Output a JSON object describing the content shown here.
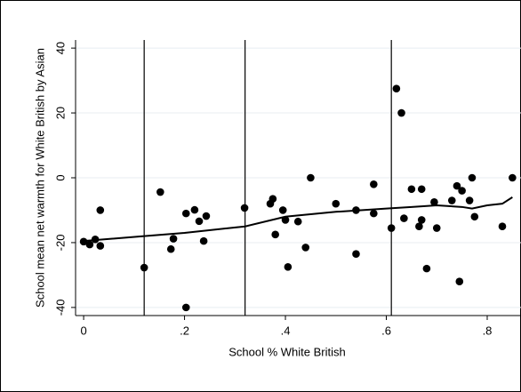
{
  "chart_data": {
    "type": "scatter",
    "x_label": "School % White British",
    "y_label": "School mean net warmth for White British by Asian",
    "xlim": [
      -0.016,
      0.867
    ],
    "ylim": [
      -42.5,
      42.5
    ],
    "xticks": [
      0,
      {
        "value": 0.2,
        "label": ".2"
      },
      {
        "value": 0.4,
        "label": ".4"
      },
      {
        "value": 0.6,
        "label": ".6"
      },
      {
        "value": 0.8,
        "label": ".8"
      }
    ],
    "yticks": [
      -40,
      -20,
      0,
      20,
      40
    ],
    "grid": true,
    "color": "#000000",
    "vlines": [
      0.12,
      0.32,
      0.61
    ],
    "points": {
      "x": [
        0,
        0.012,
        0.023,
        0.033,
        0.033,
        0.12,
        0.152,
        0.173,
        0.178,
        0.203,
        0.203,
        0.22,
        0.229,
        0.238,
        0.243,
        0.319,
        0.37,
        0.375,
        0.38,
        0.395,
        0.4,
        0.405,
        0.425,
        0.44,
        0.45,
        0.5,
        0.54,
        0.54,
        0.575,
        0.575,
        0.61,
        0.62,
        0.63,
        0.635,
        0.65,
        0.665,
        0.67,
        0.67,
        0.68,
        0.695,
        0.7,
        0.73,
        0.74,
        0.745,
        0.75,
        0.765,
        0.77,
        0.775,
        0.83,
        0.85
      ],
      "values": [
        -19.7,
        -20.6,
        -19,
        -21,
        -10,
        -27.7,
        -4.4,
        -22,
        -18.8,
        -11,
        -40,
        -9.9,
        -13.4,
        -19.5,
        -11.8,
        -9.3,
        -8,
        -6.5,
        -17.5,
        -10,
        -13,
        -27.5,
        -13.5,
        -21.5,
        0,
        -8,
        -23.5,
        -10,
        -2,
        -11,
        -15.5,
        27.5,
        20,
        -12.5,
        -3.5,
        -15,
        -3.5,
        -13,
        -28,
        -7.5,
        -15.5,
        -7,
        -2.5,
        -32,
        -4,
        -7,
        0,
        -12,
        -15,
        0
      ]
    },
    "smooth": {
      "x": [
        0,
        0.12,
        0.2,
        0.32,
        0.4,
        0.5,
        0.6,
        0.65,
        0.7,
        0.75,
        0.77,
        0.8,
        0.83,
        0.85
      ],
      "values": [
        -19.5,
        -18,
        -17,
        -15,
        -12,
        -10.5,
        -9.5,
        -9,
        -8.5,
        -9,
        -9.5,
        -8.5,
        -8,
        -6
      ]
    }
  }
}
